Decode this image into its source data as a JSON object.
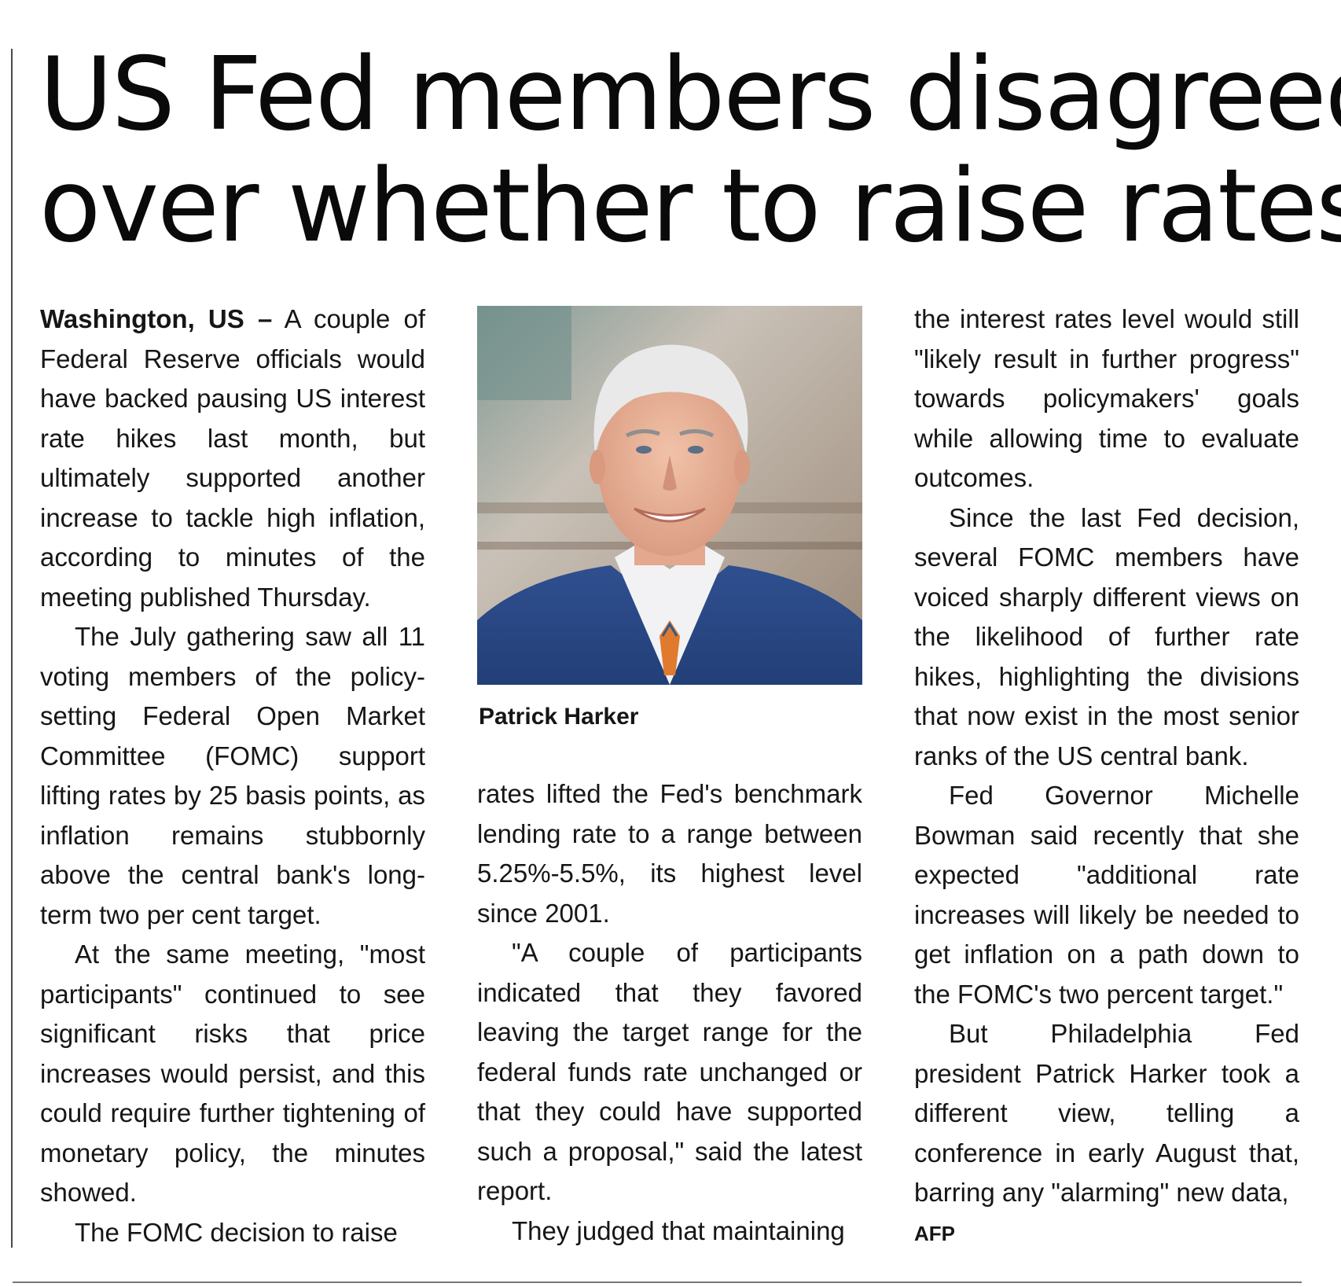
{
  "headline": {
    "line1": "US Fed members disagreed",
    "line2": "over whether to raise rates"
  },
  "photo": {
    "caption": "Patrick Harker"
  },
  "article": {
    "dateline": "Washington, US –",
    "col1": [
      " A couple of Federal Reserve officials would have backed pausing US interest rate hikes last month, but ultimately supported another increase to tackle high inflation, according to minutes of the meeting published Thursday.",
      "The July gathering saw all 11 voting members of the policy-setting Federal Open Market Committee (FOMC) support lifting rates by 25 basis points, as inflation remains stubbornly above the central bank's long-term two per cent target.",
      "At the same meeting, \"most participants\" continued to see significant risks that price increases would persist, and this could require further tightening of monetary policy, the minutes showed.",
      "The FOMC decision to raise"
    ],
    "col2": [
      "rates lifted the Fed's benchmark lending rate to a range between 5.25%-5.5%, its highest level since 2001.",
      "\"A couple of participants indicated that they favored leaving the target range for the federal funds rate unchanged or that they could have supported such a proposal,\" said the latest report.",
      "They judged that maintaining"
    ],
    "col3": [
      "the interest rates level would still \"likely result in further progress\" towards policymakers' goals while allowing time to evaluate outcomes.",
      "Since the last Fed decision, several FOMC members have voiced sharply different views on the likelihood of further rate hikes, highlighting the divisions that now exist in the most senior ranks of the US central bank.",
      "Fed Governor Michelle Bowman said recently that she expected \"additional rate increases will likely be needed to get inflation on a path down to the FOMC's two percent target.\"",
      "But Philadelphia Fed president Patrick Harker took a different view, telling a conference in early August that, barring any \"alarming\" new data,"
    ],
    "credit": "AFP"
  }
}
